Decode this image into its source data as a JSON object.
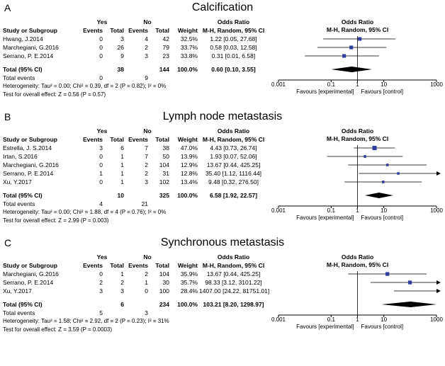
{
  "figure_name": "Forest plots of odds ratios",
  "accent_colors": {
    "marker_blue": "#2f3e9e",
    "summary_black": "#000000"
  },
  "chart_data": [
    {
      "type": "forest",
      "panel_label": "A",
      "title": "Calcification",
      "effect_label": "Odds Ratio",
      "method_label": "M-H, Random, 95% CI",
      "group_labels": [
        "Yes",
        "No"
      ],
      "columns": [
        "Study or Subgroup",
        "Events",
        "Total",
        "Events",
        "Total",
        "Weight",
        "M-H, Random, 95% CI"
      ],
      "x_axis": {
        "scale": "log",
        "min": 0.001,
        "max": 1000,
        "ticks": [
          0.001,
          0.1,
          1,
          10,
          1000
        ],
        "tick_labels": [
          "0.001",
          "0.1",
          "1",
          "10",
          "1000"
        ]
      },
      "favours_left": "Favours [experimental]",
      "favours_right": "Favours [control]",
      "studies": [
        {
          "name": "Hwang, J.2014",
          "events_yes": "0",
          "total_yes": "3",
          "events_no": "4",
          "total_no": "42",
          "weight": "32.5%",
          "weight_pct": 32.5,
          "or": 1.22,
          "ci_low": 0.05,
          "ci_high": 27.68,
          "ci_text": "1.22 [0.05, 27.68]"
        },
        {
          "name": "Marchegiani, G.2016",
          "events_yes": "0",
          "total_yes": "26",
          "events_no": "2",
          "total_no": "79",
          "weight": "33.7%",
          "weight_pct": 33.7,
          "or": 0.58,
          "ci_low": 0.03,
          "ci_high": 12.58,
          "ci_text": "0.58 [0.03, 12.58]"
        },
        {
          "name": "Serrano, P. E.2014",
          "events_yes": "0",
          "total_yes": "9",
          "events_no": "3",
          "total_no": "23",
          "weight": "33.8%",
          "weight_pct": 33.8,
          "or": 0.31,
          "ci_low": 0.01,
          "ci_high": 6.58,
          "ci_text": "0.31 [0.01, 6.58]"
        }
      ],
      "total": {
        "label": "Total (95% CI)",
        "total_yes": "38",
        "total_no": "144",
        "weight": "100.0%",
        "or": 0.6,
        "ci_low": 0.1,
        "ci_high": 3.55,
        "ci_text": "0.60 [0.10, 3.55]"
      },
      "total_events": {
        "label": "Total events",
        "yes": "0",
        "no": "9"
      },
      "heterogeneity": "Heterogeneity: Tau² = 0.00; Chi² = 0.39, df = 2 (P = 0.82); I² = 0%",
      "overall_effect": "Test for overall effect: Z = 0.56 (P = 0.57)"
    },
    {
      "type": "forest",
      "panel_label": "B",
      "title": "Lymph node metastasis",
      "effect_label": "Odds Ratio",
      "method_label": "M-H, Random, 95% CI",
      "group_labels": [
        "Yes",
        "No"
      ],
      "columns": [
        "Study or Subgroup",
        "Events",
        "Total",
        "Events",
        "Total",
        "Weight",
        "M-H, Random, 95% CI"
      ],
      "x_axis": {
        "scale": "log",
        "min": 0.001,
        "max": 1000,
        "ticks": [
          0.001,
          0.1,
          1,
          10,
          1000
        ],
        "tick_labels": [
          "0.001",
          "0.1",
          "1",
          "10",
          "1000"
        ]
      },
      "favours_left": "Favours [experimental]",
      "favours_right": "Favours [control]",
      "studies": [
        {
          "name": "Estrella, J. S.2014",
          "events_yes": "3",
          "total_yes": "6",
          "events_no": "7",
          "total_no": "38",
          "weight": "47.0%",
          "weight_pct": 47.0,
          "or": 4.43,
          "ci_low": 0.73,
          "ci_high": 26.74,
          "ci_text": "4.43 [0.73, 26.74]"
        },
        {
          "name": "Irtan, S.2016",
          "events_yes": "0",
          "total_yes": "1",
          "events_no": "7",
          "total_no": "50",
          "weight": "13.9%",
          "weight_pct": 13.9,
          "or": 1.93,
          "ci_low": 0.07,
          "ci_high": 52.06,
          "ci_text": "1.93 [0.07, 52.06]"
        },
        {
          "name": "Marchegiani, G.2016",
          "events_yes": "0",
          "total_yes": "1",
          "events_no": "2",
          "total_no": "104",
          "weight": "12.9%",
          "weight_pct": 12.9,
          "or": 13.67,
          "ci_low": 0.44,
          "ci_high": 425.25,
          "ci_text": "13.67 [0.44, 425.25]"
        },
        {
          "name": "Serrano, P. E.2014",
          "events_yes": "1",
          "total_yes": "1",
          "events_no": "2",
          "total_no": "31",
          "weight": "12.8%",
          "weight_pct": 12.8,
          "or": 35.4,
          "ci_low": 1.12,
          "ci_high": 1116.44,
          "ci_text": "35.40 [1.12, 1116.44]"
        },
        {
          "name": "Xu, Y.2017",
          "events_yes": "0",
          "total_yes": "1",
          "events_no": "3",
          "total_no": "102",
          "weight": "13.4%",
          "weight_pct": 13.4,
          "or": 9.48,
          "ci_low": 0.32,
          "ci_high": 276.5,
          "ci_text": "9.48 [0.32, 276.50]"
        }
      ],
      "total": {
        "label": "Total (95% CI)",
        "total_yes": "10",
        "total_no": "325",
        "weight": "100.0%",
        "or": 6.58,
        "ci_low": 1.92,
        "ci_high": 22.57,
        "ci_text": "6.58 [1.92, 22.57]"
      },
      "total_events": {
        "label": "Total events",
        "yes": "4",
        "no": "21"
      },
      "heterogeneity": "Heterogeneity: Tau² = 0.00; Chi² = 1.88, df = 4 (P = 0.76); I² = 0%",
      "overall_effect": "Test for overall effect: Z = 2.99 (P = 0.003)"
    },
    {
      "type": "forest",
      "panel_label": "C",
      "title": "Synchronous metastasis",
      "effect_label": "Odds Ratio",
      "method_label": "M-H, Random, 95% CI",
      "group_labels": [
        "Yes",
        "No"
      ],
      "columns": [
        "Study or Subgroup",
        "Events",
        "Total",
        "Events",
        "Total",
        "Weight",
        "M-H, Random, 95% CI"
      ],
      "x_axis": {
        "scale": "log",
        "min": 0.001,
        "max": 1000,
        "ticks": [
          0.001,
          0.1,
          1,
          10,
          1000
        ],
        "tick_labels": [
          "0.001",
          "0.1",
          "1",
          "10",
          "1000"
        ]
      },
      "favours_left": "Favours [experimental]",
      "favours_right": "Favours [control]",
      "studies": [
        {
          "name": "Marchegiani, G.2016",
          "events_yes": "0",
          "total_yes": "1",
          "events_no": "2",
          "total_no": "104",
          "weight": "35.9%",
          "weight_pct": 35.9,
          "or": 13.67,
          "ci_low": 0.44,
          "ci_high": 425.25,
          "ci_text": "13.67 [0.44, 425.25]"
        },
        {
          "name": "Serrano, P. E.2014",
          "events_yes": "2",
          "total_yes": "2",
          "events_no": "1",
          "total_no": "30",
          "weight": "35.7%",
          "weight_pct": 35.7,
          "or": 98.33,
          "ci_low": 3.12,
          "ci_high": 3101.22,
          "ci_text": "98.33 [3.12, 3101.22]"
        },
        {
          "name": "Xu, Y.2017",
          "events_yes": "3",
          "total_yes": "3",
          "events_no": "0",
          "total_no": "100",
          "weight": "28.4%",
          "weight_pct": 28.4,
          "or": 1407.0,
          "ci_low": 24.22,
          "ci_high": 81751.01,
          "ci_text": "1407.00 [24.22, 81751.01]"
        }
      ],
      "total": {
        "label": "Total (95% CI)",
        "total_yes": "6",
        "total_no": "234",
        "weight": "100.0%",
        "or": 103.21,
        "ci_low": 8.2,
        "ci_high": 1298.97,
        "ci_text": "103.21 [8.20, 1298.97]"
      },
      "total_events": {
        "label": "Total events",
        "yes": "5",
        "no": "3"
      },
      "heterogeneity": "Heterogeneity: Tau² = 1.58; Chi² = 2.92, df = 2 (P = 0.23); I² = 31%",
      "overall_effect": "Test for overall effect: Z = 3.59 (P = 0.0003)"
    }
  ]
}
